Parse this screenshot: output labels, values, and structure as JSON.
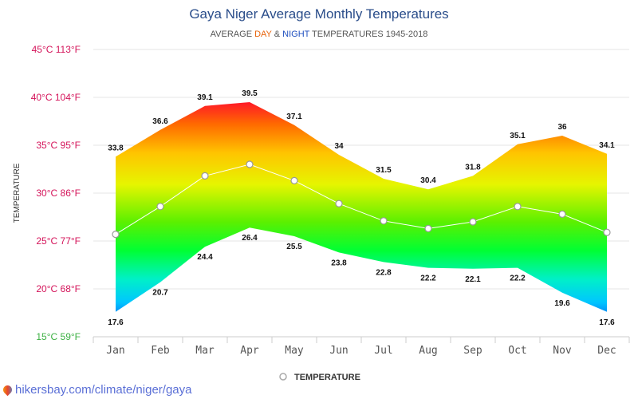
{
  "chart_data": {
    "type": "area",
    "title": "Gaya Niger Average Monthly Temperatures",
    "subtitle": {
      "prefix": "AVERAGE ",
      "day": "DAY",
      "amp": " & ",
      "night": "NIGHT",
      "suffix": " TEMPERATURES 1945-2018"
    },
    "ylabel": "TEMPERATURE",
    "categories": [
      "Jan",
      "Feb",
      "Mar",
      "Apr",
      "May",
      "Jun",
      "Jul",
      "Aug",
      "Sep",
      "Oct",
      "Nov",
      "Dec"
    ],
    "series": [
      {
        "key": "day",
        "values": [
          33.8,
          36.6,
          39.1,
          39.5,
          37.1,
          34,
          31.5,
          30.4,
          31.8,
          35.1,
          36,
          34.1
        ]
      },
      {
        "key": "night",
        "values": [
          17.6,
          20.7,
          24.4,
          26.4,
          25.5,
          23.8,
          22.8,
          22.2,
          22.1,
          22.2,
          19.6,
          17.6
        ]
      },
      {
        "name": "TEMPERATURE",
        "values": [
          25.7,
          28.6,
          31.8,
          33.0,
          31.3,
          28.9,
          27.1,
          26.3,
          27.0,
          28.6,
          27.8,
          25.9
        ]
      }
    ],
    "ylim": [
      15,
      45
    ],
    "yticks": [
      {
        "value": 15,
        "label": "15°C 59°F",
        "color": "#3cb043"
      },
      {
        "value": 20,
        "label": "20°C 68°F",
        "color": "#d4145a"
      },
      {
        "value": 25,
        "label": "25°C 77°F",
        "color": "#d4145a"
      },
      {
        "value": 30,
        "label": "30°C 86°F",
        "color": "#d4145a"
      },
      {
        "value": 35,
        "label": "35°C 95°F",
        "color": "#d4145a"
      },
      {
        "value": 40,
        "label": "40°C 104°F",
        "color": "#d4145a"
      },
      {
        "value": 45,
        "label": "45°C 113°F",
        "color": "#d4145a"
      }
    ],
    "grid": true,
    "legend": {
      "position": "bottom-center",
      "label": "TEMPERATURE"
    },
    "colors": {
      "day": "#e8640c",
      "night": "#1f4fbf",
      "title": "#2a4d8a"
    }
  },
  "footer": {
    "text": "hikersbay.com/climate/niger/gaya",
    "icon": "map-pin-icon"
  }
}
